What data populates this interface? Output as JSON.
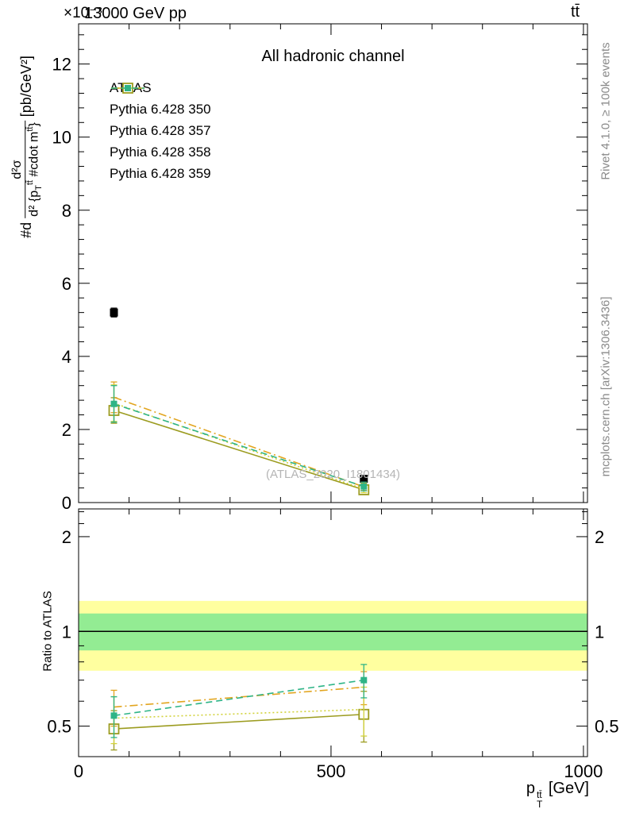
{
  "header": {
    "left_title": "13000 GeV pp",
    "right_title": "tt̄",
    "y_multiplier": "×10⁻³"
  },
  "panel_title": "All hadronic channel",
  "watermark": "(ATLAS_2020_I1801434)",
  "side_notes": {
    "top": "Rivet 4.1.0, ≥ 100k events",
    "bottom": "mcplots.cern.ch [arXiv:1306.3436]"
  },
  "ylabel": {
    "prefix": "#d",
    "numerator": "d²σ",
    "den_1": "d² {p",
    "den_sub": "T",
    "den_sup": "tt̄",
    "den_2": " #cdot m",
    "den_sup2": "tt̄",
    "den_3": "}",
    "units": "[pb/GeV²]"
  },
  "ratio_ylabel": "Ratio to ATLAS",
  "xlabel": {
    "base": "p",
    "sub": "T",
    "sup": "tt̄",
    "unit": " [GeV]"
  },
  "chart_data": {
    "type": "scatter",
    "title": "All hadronic channel",
    "xlabel": "p_T^{tt} [GeV]",
    "ylabel": "#d d²σ / d²{p_T^{tt} #cdot m^{tt}} [pb/GeV²]",
    "ratio_ylabel": "Ratio to ATLAS",
    "y_units_multiplier": "1e-3",
    "xlim": [
      0,
      1008
    ],
    "ylim": [
      0,
      13.1
    ],
    "ratio_ylim": [
      0.4,
      2.45
    ],
    "ratio_yscale": "log",
    "xticks_major": [
      0,
      500,
      1000
    ],
    "xticks_minor": [
      100,
      200,
      300,
      400,
      600,
      700,
      800,
      900
    ],
    "yticks_major": [
      0,
      2,
      4,
      6,
      8,
      10,
      12
    ],
    "yticks_minor_step": 0.4,
    "ratio_yticks_major": [
      0.5,
      1,
      2
    ],
    "ratio_yticks_minor": [
      0.4,
      0.6,
      0.7,
      0.8,
      0.9,
      2.2,
      2.4
    ],
    "ratio_bands": [
      {
        "lo": 0.75,
        "hi": 1.25,
        "color": "#ffff9f"
      },
      {
        "lo": 0.87,
        "hi": 1.14,
        "color": "#93ec93"
      }
    ],
    "ratio_ref_line": 1,
    "x": [
      70,
      565
    ],
    "series": [
      {
        "name": "ATLAS",
        "color": "#000000",
        "line": "none",
        "marker": "square-filled",
        "marker_size": 10,
        "y": [
          5.2,
          0.65
        ],
        "yerr": [
          0.12,
          0.06
        ],
        "ratio": null,
        "ratio_err": null
      },
      {
        "name": "Pythia 6.428 350",
        "color": "#9c9c20",
        "line": "solid",
        "marker": "square-open",
        "marker_size": 12,
        "y": [
          2.52,
          0.35
        ],
        "yerr": [
          0.35,
          0.1
        ],
        "ratio": [
          0.49,
          0.545
        ],
        "ratio_err": [
          0.07,
          0.1
        ]
      },
      {
        "name": "Pythia 6.428 357",
        "color": "#e2a51f",
        "line": "dashdot",
        "marker": "none",
        "marker_size": 0,
        "y": [
          2.88,
          0.43
        ],
        "yerr": [
          0.42,
          0.1
        ],
        "ratio": [
          0.575,
          0.665
        ],
        "ratio_err": [
          0.075,
          0.08
        ]
      },
      {
        "name": "Pythia 6.428 358",
        "color": "#d2d23c",
        "line": "dotted",
        "marker": "none",
        "marker_size": 0,
        "y": [
          2.72,
          0.37
        ],
        "yerr": [
          0.5,
          0.1
        ],
        "ratio": [
          0.53,
          0.565
        ],
        "ratio_err": [
          0.09,
          0.1
        ]
      },
      {
        "name": "Pythia 6.428 359",
        "color": "#2eb487",
        "line": "dashed",
        "marker": "square-filled",
        "marker_size": 8,
        "y": [
          2.7,
          0.44
        ],
        "yerr": [
          0.5,
          0.12
        ],
        "ratio": [
          0.54,
          0.7
        ],
        "ratio_err": [
          0.08,
          0.085
        ]
      }
    ]
  }
}
